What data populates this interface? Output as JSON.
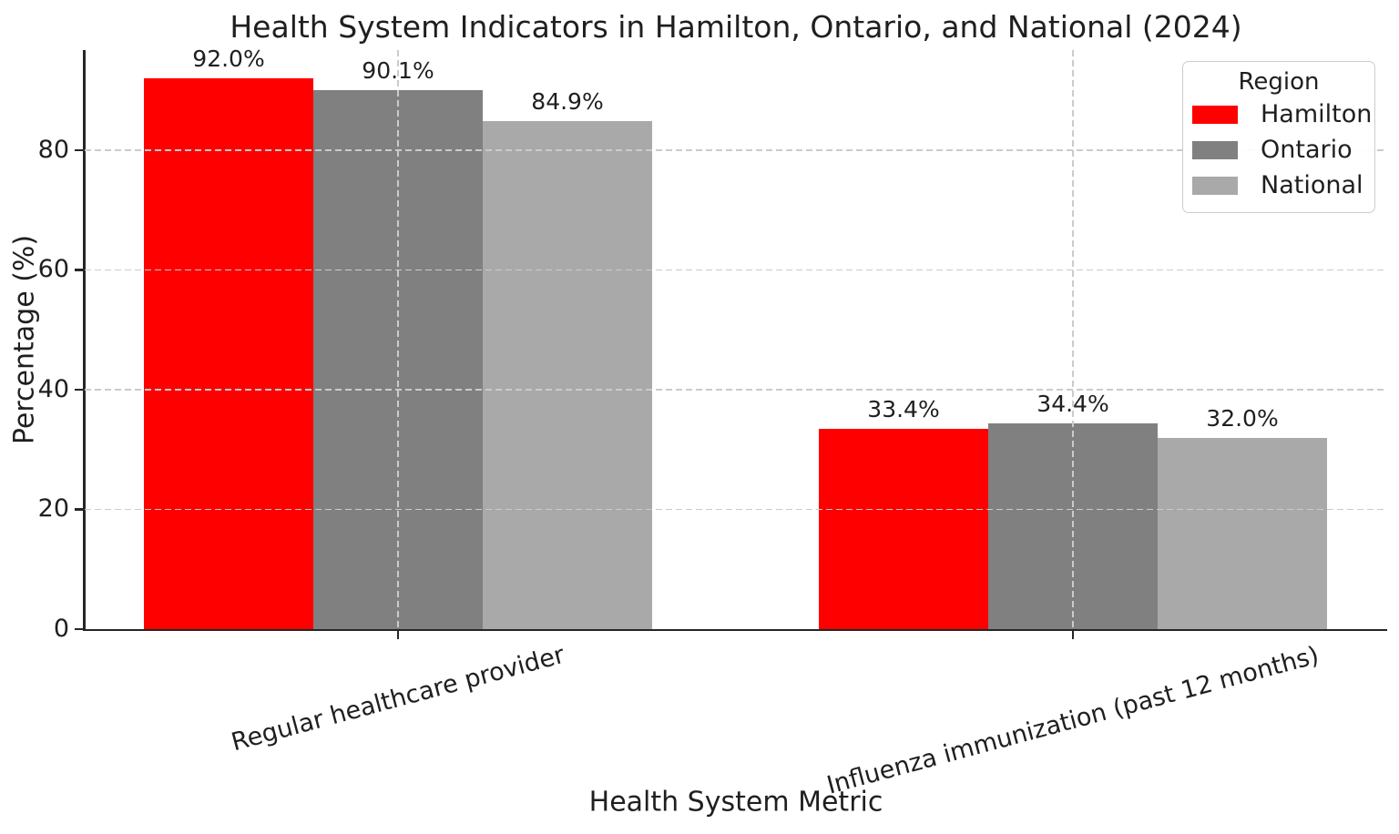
{
  "figure": {
    "title": "Health System Indicators in Hamilton, Ontario, and National (2024)",
    "xlabel": "Health System Metric",
    "ylabel": "Percentage (%)"
  },
  "legend": {
    "title": "Region",
    "entries": [
      "Hamilton",
      "Ontario",
      "National"
    ]
  },
  "chart_data": {
    "type": "bar",
    "title": "Health System Indicators in Hamilton, Ontario, and National (2024)",
    "xlabel": "Health System Metric",
    "ylabel": "Percentage (%)",
    "categories": [
      "Regular healthcare provider",
      "Influenza immunization (past 12 months)"
    ],
    "series": [
      {
        "name": "Hamilton",
        "color": "#ff0000",
        "values": [
          92.0,
          33.4
        ],
        "labels": [
          "92.0%",
          "33.4%"
        ]
      },
      {
        "name": "Ontario",
        "color": "#808080",
        "values": [
          90.1,
          34.4
        ],
        "labels": [
          "90.1%",
          "34.4%"
        ]
      },
      {
        "name": "National",
        "color": "#a9a9a9",
        "values": [
          84.9,
          32.0
        ],
        "labels": [
          "84.9%",
          "32.0%"
        ]
      }
    ],
    "yticks": [
      0,
      20,
      40,
      60,
      80
    ],
    "ytick_labels": [
      "0",
      "20",
      "40",
      "60",
      "80"
    ],
    "ylim": [
      0,
      97
    ],
    "grid": "dashed, drawn above bars, horizontal at yticks and vertical at category centers",
    "legend_title": "Region",
    "legend_position": "upper right",
    "bar_label_format": "value + %"
  },
  "colors": {
    "hamilton": "#ff0000",
    "ontario": "#808080",
    "national": "#a9a9a9",
    "grid": "#cbcbcb",
    "spine": "#262626",
    "text": "#1f1f1f",
    "background": "#ffffff",
    "legend_border": "#cccccc"
  }
}
